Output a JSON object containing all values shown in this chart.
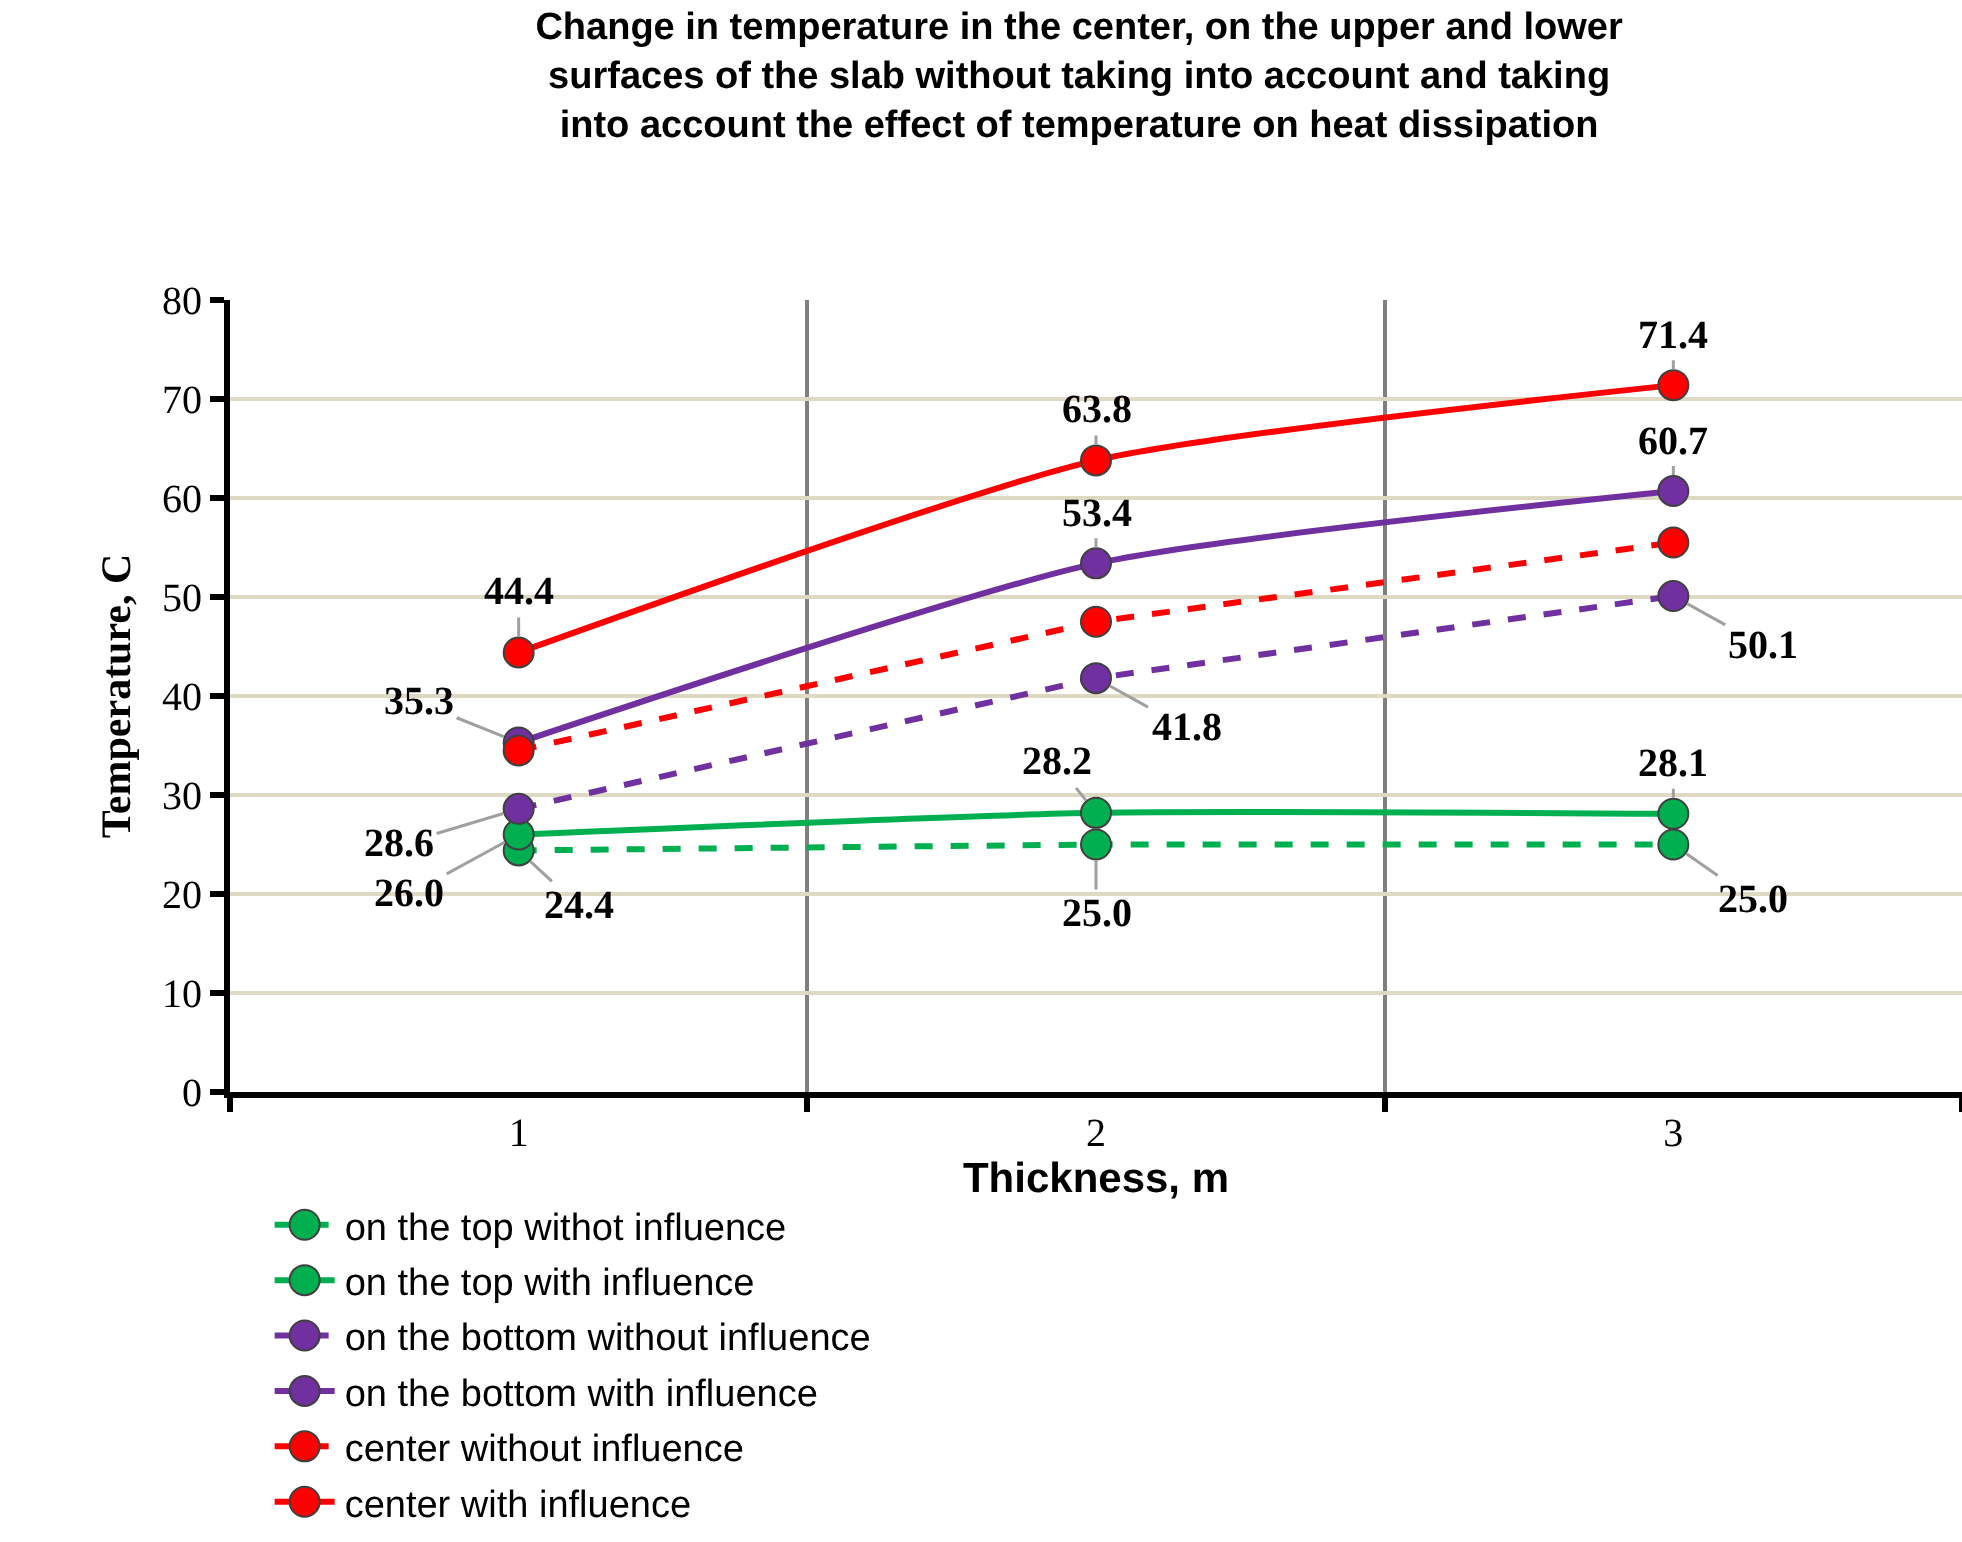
{
  "chart_data": {
    "type": "line",
    "title": "Change in temperature in the center, on the upper and lower surfaces of the slab without taking into account and taking into account the effect of temperature on heat dissipation",
    "xlabel": "Thickness, m",
    "ylabel": "Temperature, C",
    "categories": [
      "1",
      "2",
      "3"
    ],
    "ylim": [
      0,
      80
    ],
    "yticks": [
      0,
      10,
      20,
      30,
      40,
      50,
      60,
      70,
      80
    ],
    "grid": true,
    "legend": "bottom",
    "marker": "circle",
    "series": [
      {
        "name": "on the top withot influence",
        "color": "#00b050",
        "line_style": "dashed",
        "values": [
          24.4,
          25.0,
          25.0
        ],
        "value_labels": [
          "24.4",
          "25.0",
          "25.0"
        ]
      },
      {
        "name": "on the top with influence",
        "color": "#00b050",
        "line_style": "solid",
        "values": [
          26.0,
          28.2,
          28.1
        ],
        "value_labels": [
          "26.0",
          "28.2",
          "28.1"
        ]
      },
      {
        "name": "on the bottom without influence",
        "color": "#7030a0",
        "line_style": "dashed",
        "values": [
          28.6,
          41.8,
          50.1
        ],
        "value_labels": [
          "28.6",
          "41.8",
          "50.1"
        ]
      },
      {
        "name": "on the bottom with influence",
        "color": "#7030a0",
        "line_style": "solid",
        "values": [
          35.3,
          53.4,
          60.7
        ],
        "value_labels": [
          "35.3",
          "53.4",
          "60.7"
        ]
      },
      {
        "name": "center without influence",
        "color": "#ff0000",
        "line_style": "dashed",
        "values": [
          34.5,
          47.5,
          55.5
        ]
      },
      {
        "name": "center with influence",
        "color": "#ff0000",
        "line_style": "solid",
        "values": [
          44.4,
          63.8,
          71.4
        ],
        "value_labels": [
          "44.4",
          "63.8",
          "71.4"
        ]
      }
    ]
  }
}
